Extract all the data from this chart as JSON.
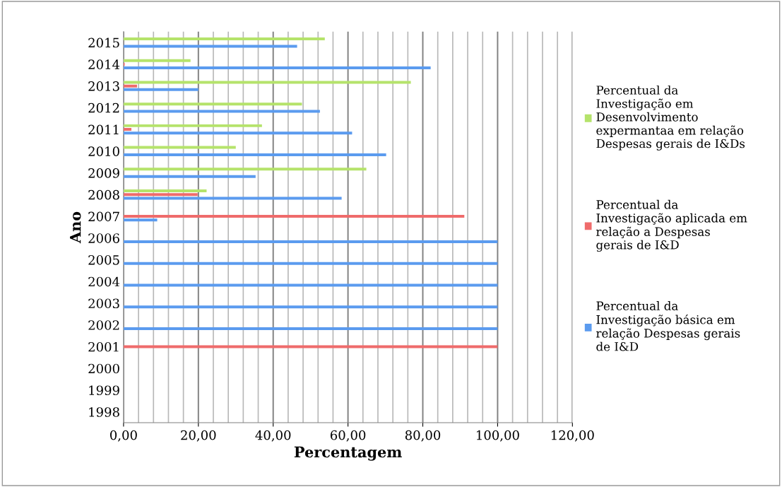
{
  "chart_data": {
    "type": "bar",
    "orientation": "horizontal",
    "xlabel": "Percentagem",
    "ylabel": "Ano",
    "categories": [
      "2015",
      "2014",
      "2013",
      "2012",
      "2011",
      "2010",
      "2009",
      "2008",
      "2007",
      "2006",
      "2005",
      "2004",
      "2003",
      "2002",
      "2001",
      "2000",
      "1999",
      "1998"
    ],
    "series": [
      {
        "name": "Percentual da Investigação básica em relação Despesas gerais de I&D",
        "color": "#5b9bef",
        "values": [
          46.4,
          82.1,
          20.0,
          52.5,
          61.1,
          70.2,
          35.3,
          58.3,
          9.0,
          100,
          100,
          100,
          100,
          100,
          null,
          null,
          null,
          null
        ]
      },
      {
        "name": "Percentual da Investigação aplicada em relação a Despesas gerais de I&D",
        "color": "#ef6b6b",
        "values": [
          null,
          0.3,
          3.6,
          null,
          2.1,
          null,
          null,
          19.8,
          91.1,
          null,
          null,
          null,
          null,
          null,
          100,
          null,
          null,
          null
        ]
      },
      {
        "name": "Percentual da Investigação em Desenvolvimento expermantaa em relação Despesas gerais de I&Ds",
        "color": "#b5e36b",
        "values": [
          53.8,
          17.9,
          76.8,
          47.7,
          37.0,
          30.0,
          64.9,
          22.2,
          null,
          null,
          null,
          null,
          null,
          null,
          null,
          null,
          null,
          null
        ]
      }
    ],
    "xlim": [
      0,
      120
    ],
    "xticks": [
      {
        "value": 0,
        "label": "0,00"
      },
      {
        "value": 20,
        "label": "20,00"
      },
      {
        "value": 40,
        "label": "40,00"
      },
      {
        "value": 60,
        "label": "60,00"
      },
      {
        "value": 80,
        "label": "80,00"
      },
      {
        "value": 100,
        "label": "100,00"
      },
      {
        "value": 120,
        "label": "120,00"
      }
    ],
    "grid": "x",
    "legend": "right"
  }
}
